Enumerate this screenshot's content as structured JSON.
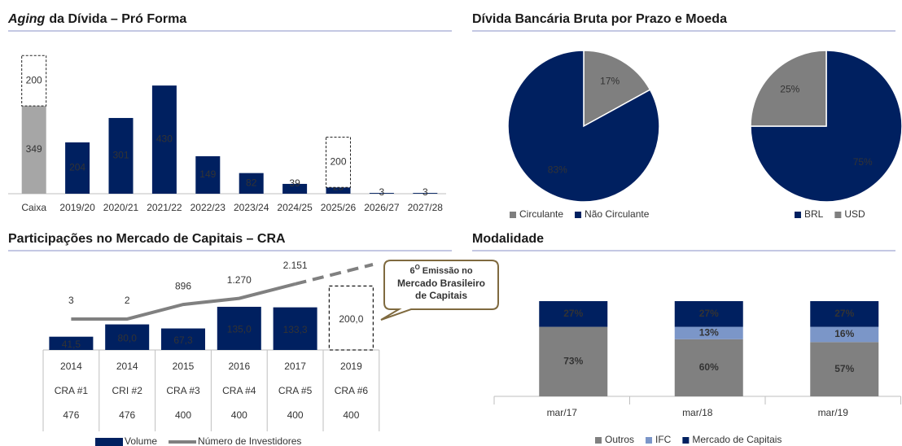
{
  "chart_data": [
    {
      "type": "bar",
      "title_emphasis": "Aging",
      "title": "da Dívida – Pró Forma",
      "categories": [
        "Caixa",
        "2019/20",
        "2020/21",
        "2021/22",
        "2022/23",
        "2023/24",
        "2024/25",
        "2025/26",
        "2026/27",
        "2027/28"
      ],
      "values": [
        349,
        204,
        301,
        430,
        149,
        82,
        39,
        25,
        3,
        3
      ],
      "colors": [
        "#a6a6a6",
        "#002060",
        "#002060",
        "#002060",
        "#002060",
        "#002060",
        "#002060",
        "#002060",
        "#002060",
        "#002060"
      ],
      "dashed_values": [
        200,
        null,
        null,
        null,
        null,
        null,
        null,
        200,
        null,
        null
      ],
      "ylim": [
        0,
        550
      ]
    },
    {
      "type": "pie",
      "title": "Dívida Bancária Bruta por Prazo e Moeda",
      "pies": [
        {
          "labels": [
            "Circulante",
            "Não Circulante"
          ],
          "values": [
            17,
            83
          ],
          "value_labels": [
            "17%",
            "83%"
          ],
          "colors": [
            "#7f7f7f",
            "#002060"
          ]
        },
        {
          "labels": [
            "BRL",
            "USD"
          ],
          "values": [
            75,
            25
          ],
          "value_labels": [
            "75%",
            "25%"
          ],
          "colors": [
            "#002060",
            "#7f7f7f"
          ]
        }
      ]
    },
    {
      "type": "bar_line",
      "title": "Participações no Mercado de Capitais – CRA",
      "categories": [
        "2014",
        "2014",
        "2015",
        "2016",
        "2017",
        "2019"
      ],
      "category_names": [
        "CRA #1",
        "CRI #2",
        "CRA #3",
        "CRA #4",
        "CRA #5",
        "CRA #6"
      ],
      "table_values": [
        476,
        476,
        400,
        400,
        400,
        400
      ],
      "series": [
        {
          "name": "Volume",
          "color": "#002060",
          "values": [
            41.5,
            80.0,
            67.3,
            135.0,
            133.3,
            200.0
          ],
          "value_labels": [
            "41,5",
            "80,0",
            "67,3",
            "135,0",
            "133,3",
            "200,0"
          ],
          "dashed": [
            false,
            false,
            false,
            false,
            false,
            true
          ]
        },
        {
          "name": "Número de Investidores",
          "color": "#808080",
          "axis": "y2",
          "values": [
            3,
            2,
            896,
            1270,
            2151,
            null
          ],
          "value_labels": [
            "3",
            "2",
            "896",
            "1.270",
            "2.151",
            null
          ]
        }
      ],
      "ylim": [
        0,
        280
      ],
      "y2lim": [
        -1900,
        3600
      ],
      "callout": {
        "number": "6",
        "superscript": "O",
        "lines": [
          "Emissão no",
          "Mercado Brasileiro",
          "de Capitais"
        ]
      }
    },
    {
      "type": "stacked_bar",
      "title": "Modalidade",
      "categories": [
        "mar/17",
        "mar/18",
        "mar/19"
      ],
      "series": [
        {
          "name": "Outros",
          "color": "#808080",
          "values": [
            73,
            60,
            57
          ],
          "value_labels": [
            "73%",
            "60%",
            "57%"
          ]
        },
        {
          "name": "IFC",
          "color": "#7b96c8",
          "values": [
            null,
            13,
            16
          ],
          "value_labels": [
            null,
            "13%",
            "16%"
          ]
        },
        {
          "name": "Mercado de Capitais",
          "color": "#002060",
          "values": [
            27,
            27,
            27
          ],
          "value_labels": [
            "27%",
            "27%",
            "27%"
          ]
        }
      ],
      "ylim": [
        0,
        100
      ]
    }
  ]
}
